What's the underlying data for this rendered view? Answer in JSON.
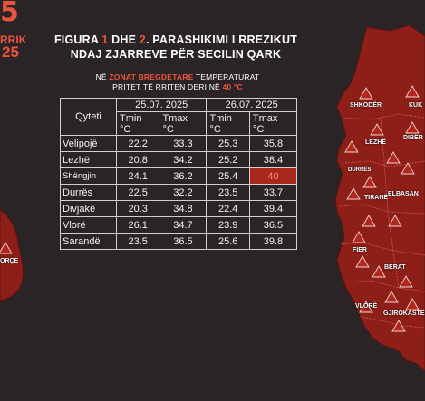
{
  "corner": {
    "number": "5",
    "word": "RRIK",
    "year": "25"
  },
  "title": {
    "line1_a": "FIGURA ",
    "line1_n1": "1",
    "line1_b": " DHE ",
    "line1_n2": "2",
    "line1_c": ". PARASHIKIMI I RREZIKUT",
    "line2": "NDAJ ZJARREVE PËR SECILIN QARK"
  },
  "subtitle": {
    "a": "NË ",
    "hl": "ZONAT BREGDETARE",
    "b": " TEMPERATURAT",
    "c": "PRITET TË RRITEN DERI NË ",
    "value": "40",
    "unit": " °C"
  },
  "table": {
    "city_header": "Qyteti",
    "dates": [
      "25.07. 2025",
      "26.07. 2025"
    ],
    "col_min": "Tmin",
    "col_max": "Tmax",
    "col_unit": "°C",
    "rows": [
      {
        "city": "Velipojë",
        "v": [
          "22.2",
          "33.3",
          "25.3",
          "35.8"
        ]
      },
      {
        "city": "Lezhë",
        "v": [
          "20.8",
          "34.2",
          "25.2",
          "38.4"
        ]
      },
      {
        "city": "Shëngjin",
        "v": [
          "24.1",
          "36.2",
          "25.4",
          "40"
        ]
      },
      {
        "city": "Durrës",
        "v": [
          "22.5",
          "32.2",
          "23.5",
          "33.7"
        ]
      },
      {
        "city": "Divjakë",
        "v": [
          "20.3",
          "34.8",
          "22.4",
          "39.4"
        ]
      },
      {
        "city": "Vlorë",
        "v": [
          "26.1",
          "34.7",
          "23.9",
          "36.5"
        ]
      },
      {
        "city": "Sarandë",
        "v": [
          "23.5",
          "36.5",
          "25.6",
          "39.8"
        ]
      }
    ]
  },
  "map_labels": {
    "shkoder": "SHKODËR",
    "kukes": "KUK",
    "lezhe": "LEZHË",
    "diber": "DIBËR",
    "durres": "DURRËS",
    "tirane": "TIRANË",
    "elbasan": "ELBASAN",
    "fier": "FIER",
    "berat": "BERAT",
    "vlore": "VLORË",
    "gjirokaster": "GJIROKASTË",
    "korce": "ORÇE"
  },
  "colors": {
    "background": "#2b2426",
    "map_fill": "#8e1f18",
    "accent": "#e8553a",
    "alert_cell": "#a8261d"
  },
  "icons": [
    "warning-triangle-icon"
  ]
}
